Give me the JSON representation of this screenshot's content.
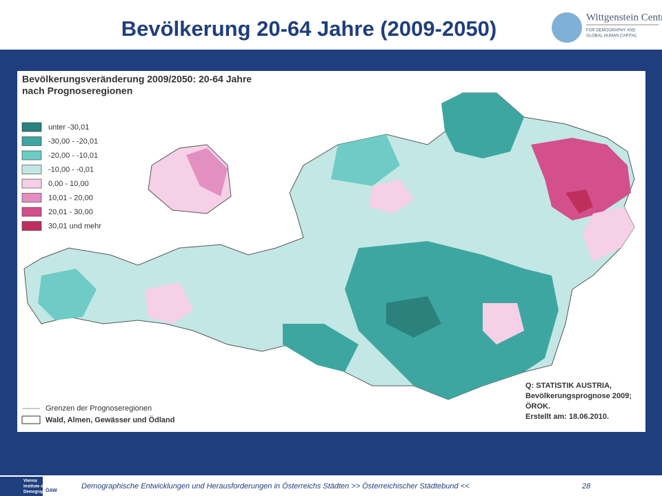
{
  "header": {
    "title": "Bevölkerung 20-64 Jahre (2009-2050)",
    "logo_name": "Wittgenstein Centre",
    "logo_sub_1": "FOR DEMOGRAPHY AND",
    "logo_sub_2": "GLOBAL HUMAN CAPITAL"
  },
  "map": {
    "title_1": "Bevölkerungsveränderung 2009/2050: 20-64 Jahre",
    "title_2": "nach Prognoseregionen",
    "legend": [
      {
        "label": "unter  -30,01",
        "color": "#2b817c"
      },
      {
        "label": "-30,00 -  -20,01",
        "color": "#3ea6a1"
      },
      {
        "label": "-20,00 -  -10,01",
        "color": "#6fcbc6"
      },
      {
        "label": "-10,00 -    -0,01",
        "color": "#c3e7e5"
      },
      {
        "label": "0,00 -   10,00",
        "color": "#f6d0e6"
      },
      {
        "label": "10,01 -   20,00",
        "color": "#e38fc2"
      },
      {
        "label": "20,01 -   30,00",
        "color": "#d3508c"
      },
      {
        "label": "30,01 und mehr",
        "color": "#be2f5d"
      }
    ],
    "boundary_legend_1": "Grenzen der Prognoseregionen",
    "boundary_legend_2": "Wald, Almen, Gewässer und Ödland",
    "source": [
      "Q: STATISTIK AUSTRIA,",
      "Bevölkerungsprognose 2009;",
      "ÖROK.",
      "Erstellt am: 18.06.2010."
    ]
  },
  "footer": {
    "text": "Demographische Entwicklungen und Herausforderungen  in Österreichs Städten  >>  Österreichischer Städtebund  <<",
    "page": "28",
    "logo_1": "Vienna",
    "logo_2": "Institute of",
    "logo_3": "Demography",
    "logo_4": "ÖAW"
  }
}
